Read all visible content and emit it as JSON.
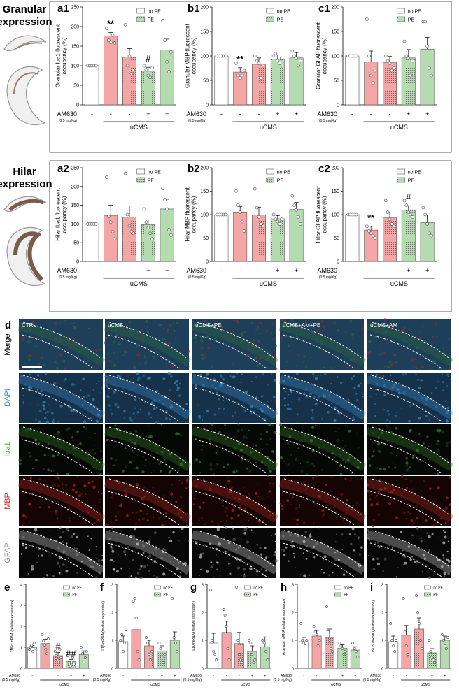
{
  "section_labels": {
    "granular": "Granular\nexpression",
    "hilar": "Hilar\nexpression"
  },
  "legend": {
    "no_pe": "no PE",
    "pe": "PE"
  },
  "xaxis": {
    "am630": "AM630",
    "dose": "(0.5 mg/Kg)",
    "group": "uCMS",
    "signs": [
      "-",
      "-",
      "-",
      "+",
      "+"
    ]
  },
  "colors": {
    "no_pe": "#ffffff",
    "pe": "#f4a6a6",
    "am": "#b5dcb0",
    "ctrl": "#ffffff"
  },
  "image_panel": {
    "letter": "d",
    "columns": [
      "CTRL",
      "uCMS",
      "uCMS+PE",
      "uCMS+AM+PE",
      "uCMS+AM"
    ],
    "rows": [
      {
        "label": "Merge",
        "color": "#000000"
      },
      {
        "label": "DAPI",
        "color": "#3a8fd0"
      },
      {
        "label": "Iba1",
        "color": "#5aa84a"
      },
      {
        "label": "MBP",
        "color": "#d0302a"
      },
      {
        "label": "GFAP",
        "color": "#9a9a9a"
      }
    ]
  },
  "chart_data": [
    {
      "panel": "a1",
      "type": "bar",
      "ylabel": "Granular Iba1 fluorescent\noccupancy (%)",
      "ylim": [
        0,
        250
      ],
      "yticks": [
        0,
        50,
        100,
        150,
        200,
        250
      ],
      "values": [
        100,
        176,
        122,
        86,
        140
      ],
      "errors": [
        0,
        9,
        22,
        10,
        28
      ],
      "marks": [
        "",
        "**",
        "",
        "#",
        ""
      ],
      "points": [
        [
          100,
          100,
          100,
          100,
          100
        ],
        [
          195,
          165,
          160,
          178,
          158
        ],
        [
          205,
          100,
          125,
          80,
          90
        ],
        [
          100,
          90,
          75,
          70,
          95
        ],
        [
          215,
          165,
          110,
          85,
          135
        ]
      ]
    },
    {
      "panel": "b1",
      "type": "bar",
      "ylabel": "Granular MBP fluorescent\noccupancy (%)",
      "ylim": [
        0,
        200
      ],
      "yticks": [
        0,
        50,
        100,
        150,
        200
      ],
      "values": [
        100,
        67,
        83,
        94,
        96
      ],
      "errors": [
        0,
        9,
        13,
        8,
        11
      ],
      "marks": [
        "",
        "**",
        "",
        "",
        ""
      ],
      "points": [
        [
          100,
          100,
          100,
          100,
          100
        ],
        [
          85,
          60,
          55,
          60,
          70
        ],
        [
          100,
          90,
          85,
          55,
          80
        ],
        [
          100,
          105,
          90,
          85,
          95
        ],
        [
          110,
          100,
          95,
          80,
          90
        ]
      ]
    },
    {
      "panel": "c1",
      "type": "bar",
      "ylabel": "Granular GFAP fluorescent\noccupancy (%)",
      "ylim": [
        0,
        200
      ],
      "yticks": [
        0,
        50,
        100,
        150,
        200
      ],
      "values": [
        100,
        88,
        87,
        96,
        114
      ],
      "errors": [
        0,
        22,
        12,
        17,
        24
      ],
      "marks": [
        "",
        "",
        "",
        "",
        ""
      ],
      "points": [
        [
          100,
          100,
          100,
          100,
          100
        ],
        [
          175,
          100,
          60,
          45,
          70
        ],
        [
          100,
          90,
          85,
          70,
          75
        ],
        [
          130,
          100,
          95,
          60,
          90
        ],
        [
          170,
          170,
          120,
          75,
          60
        ]
      ]
    },
    {
      "panel": "a2",
      "type": "bar",
      "ylabel": "Hilar Iba1 fluorescent\noccupancy (%)",
      "ylim": [
        0,
        250
      ],
      "yticks": [
        0,
        50,
        100,
        150,
        200,
        250
      ],
      "values": [
        100,
        123,
        118,
        98,
        140
      ],
      "errors": [
        0,
        27,
        30,
        15,
        26
      ],
      "marks": [
        "",
        "",
        "",
        "",
        ""
      ],
      "points": [
        [
          100,
          100,
          100,
          100,
          100
        ],
        [
          225,
          120,
          105,
          80,
          60
        ],
        [
          235,
          125,
          95,
          80,
          75
        ],
        [
          140,
          105,
          90,
          75,
          60
        ],
        [
          195,
          165,
          140,
          85,
          70
        ]
      ]
    },
    {
      "panel": "b2",
      "type": "bar",
      "ylabel": "Hilar MBP fluorescent\noccupancy (%)",
      "ylim": [
        0,
        200
      ],
      "yticks": [
        0,
        50,
        100,
        150,
        200
      ],
      "values": [
        100,
        104,
        99,
        91,
        111
      ],
      "errors": [
        0,
        13,
        17,
        7,
        15
      ],
      "marks": [
        "",
        "",
        "",
        "",
        ""
      ],
      "points": [
        [
          100,
          100,
          100,
          100,
          100
        ],
        [
          150,
          120,
          105,
          85,
          65
        ],
        [
          155,
          115,
          95,
          80,
          75
        ],
        [
          100,
          90,
          85,
          80,
          90
        ],
        [
          140,
          120,
          110,
          95,
          80
        ]
      ]
    },
    {
      "panel": "c2",
      "type": "bar",
      "ylabel": "Hilar GFAP fluorescent\noccupancy (%)",
      "ylim": [
        0,
        200
      ],
      "yticks": [
        0,
        50,
        100,
        150,
        200
      ],
      "values": [
        100,
        67,
        93,
        110,
        83
      ],
      "errors": [
        0,
        8,
        12,
        9,
        16
      ],
      "marks": [
        "",
        "**",
        "",
        "#",
        ""
      ],
      "points": [
        [
          100,
          100,
          100,
          100,
          100
        ],
        [
          75,
          65,
          60,
          55,
          50
        ],
        [
          130,
          105,
          90,
          80,
          75
        ],
        [
          130,
          120,
          105,
          100,
          95
        ],
        [
          115,
          100,
          80,
          60,
          55
        ]
      ]
    },
    {
      "panel": "e",
      "type": "bar",
      "ylabel": "TNFα mRNA (relative expression)",
      "ylim": [
        0,
        4
      ],
      "yticks": [
        0,
        1,
        2,
        3,
        4
      ],
      "values": [
        0.98,
        1.18,
        0.6,
        0.32,
        0.65
      ],
      "errors": [
        0.1,
        0.2,
        0.15,
        0.1,
        0.18
      ],
      "marks": [
        "",
        "",
        "#",
        "##",
        ""
      ],
      "points": [
        [
          0.9,
          1.0,
          1.1,
          0.8,
          1.2,
          0.95
        ],
        [
          1.6,
          1.3,
          1.1,
          0.9,
          0.7,
          1.4
        ],
        [
          0.8,
          0.6,
          0.4,
          0.3,
          0.9,
          0.5
        ],
        [
          0.6,
          0.2,
          0.1,
          0.3,
          0.5,
          0.2
        ],
        [
          1.0,
          0.7,
          0.3,
          0.5,
          0.8
        ]
      ]
    },
    {
      "panel": "f",
      "type": "bar",
      "ylabel": "IL1β mRNA (relative expression)",
      "ylim": [
        0,
        3
      ],
      "yticks": [
        0,
        1,
        2,
        3
      ],
      "values": [
        0.95,
        1.38,
        0.8,
        0.62,
        1.0
      ],
      "errors": [
        0.2,
        0.45,
        0.2,
        0.18,
        0.3
      ],
      "marks": [
        "",
        "",
        "",
        "",
        ""
      ],
      "points": [
        [
          1.0,
          1.2,
          0.6,
          0.9,
          1.3
        ],
        [
          2.4,
          2.5,
          1.8,
          0.6,
          0.3
        ],
        [
          1.1,
          0.9,
          0.5,
          0.3,
          0.6
        ],
        [
          0.9,
          0.7,
          0.4,
          0.2,
          0.5
        ],
        [
          2.5,
          1.1,
          0.9,
          0.6
        ]
      ]
    },
    {
      "panel": "g",
      "type": "bar",
      "ylabel": "IL10 mRNA (relative expression)",
      "ylim": [
        0,
        3
      ],
      "yticks": [
        0,
        1,
        2,
        3
      ],
      "values": [
        0.9,
        1.28,
        0.88,
        0.6,
        0.77
      ],
      "errors": [
        0.35,
        0.4,
        0.4,
        0.2,
        0.35
      ],
      "marks": [
        "",
        "",
        "",
        "",
        ""
      ],
      "points": [
        [
          2.8,
          1.0,
          0.6,
          0.5,
          0.3
        ],
        [
          2.1,
          1.9,
          1.5,
          0.7,
          0.3
        ],
        [
          2.9,
          1.0,
          0.5,
          0.3,
          0.2
        ],
        [
          1.0,
          0.9,
          0.5,
          0.2,
          0.3
        ],
        [
          1.0,
          0.9,
          0.6,
          0.3
        ]
      ]
    },
    {
      "panel": "h",
      "type": "bar",
      "ylabel": "Arginase mRNA (relative expression)",
      "ylim": [
        0,
        3
      ],
      "yticks": [
        0,
        1,
        2,
        3
      ],
      "values": [
        0.95,
        1.15,
        1.1,
        0.72,
        0.65
      ],
      "errors": [
        0.15,
        0.2,
        0.3,
        0.12,
        0.12
      ],
      "marks": [
        "",
        "",
        "",
        "",
        ""
      ],
      "points": [
        [
          1.6,
          1.0,
          0.9,
          0.8,
          1.0
        ],
        [
          1.5,
          1.3,
          1.2,
          0.8,
          1.0
        ],
        [
          2.2,
          1.3,
          1.0,
          0.7,
          0.6
        ],
        [
          0.9,
          0.8,
          0.7,
          0.5,
          0.6
        ],
        [
          0.9,
          0.7,
          0.6,
          0.4
        ]
      ]
    },
    {
      "panel": "i",
      "type": "bar",
      "ylabel": "iNOS mRNA (relative expression)",
      "ylim": [
        0,
        3
      ],
      "yticks": [
        0,
        1,
        2,
        3
      ],
      "values": [
        0.95,
        1.18,
        1.4,
        0.55,
        1.0
      ],
      "errors": [
        0.2,
        0.35,
        0.4,
        0.15,
        0.15
      ],
      "marks": [
        "",
        "",
        "",
        "",
        ""
      ],
      "points": [
        [
          1.6,
          1.0,
          0.8,
          0.6,
          1.0
        ],
        [
          2.5,
          1.3,
          0.8,
          0.5,
          0.4
        ],
        [
          2.6,
          2.0,
          1.6,
          1.0,
          0.7
        ],
        [
          1.0,
          0.6,
          0.4,
          0.3,
          0.2
        ],
        [
          1.2,
          1.0,
          0.8,
          0.7,
          1.1
        ]
      ]
    }
  ]
}
